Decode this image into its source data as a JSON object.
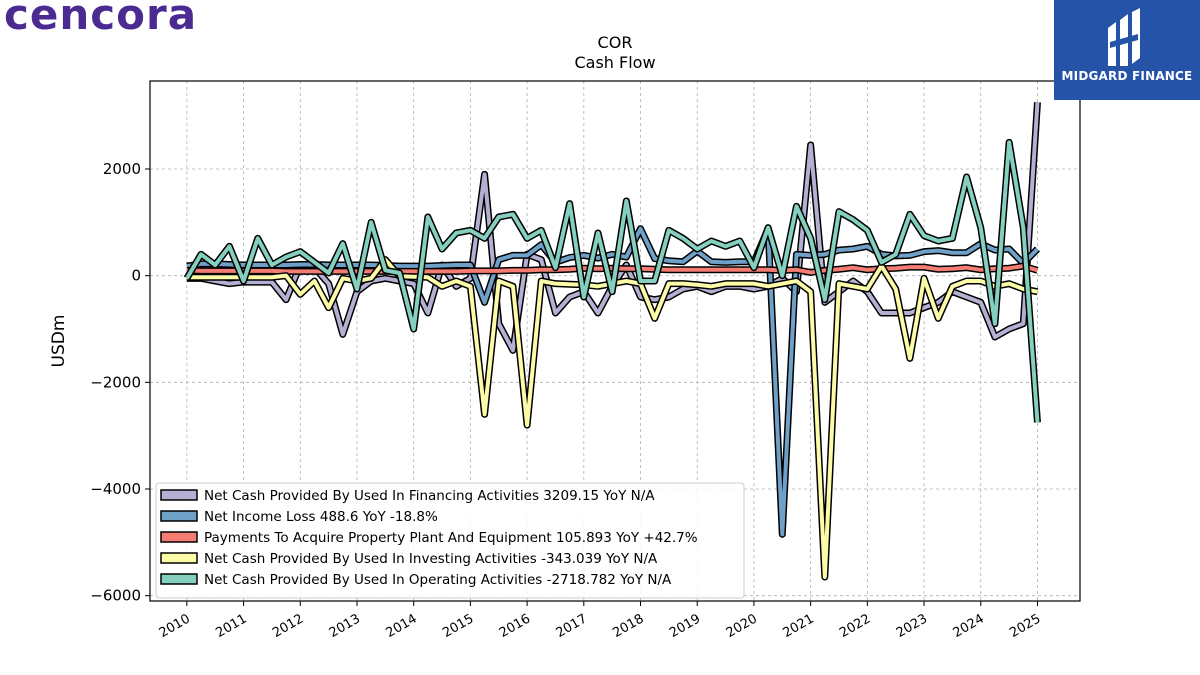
{
  "brand": {
    "company_logo": "cencora",
    "badge_text": "MIDGARD FINANCE",
    "badge_color": "#2553a8",
    "logo_color": "#4b2a91"
  },
  "chart_data": {
    "type": "line",
    "title": "COR",
    "subtitle": "Cash Flow",
    "xlabel": "",
    "ylabel": "USDm",
    "xlim": [
      2009.35,
      2025.75
    ],
    "ylim": [
      -6100,
      3650
    ],
    "yticks": [
      2000,
      0,
      -2000,
      -4000,
      -6000
    ],
    "ytick_labels": [
      "2000",
      "0",
      "−2000",
      "−4000",
      "−6000"
    ],
    "xticks": [
      "2010",
      "2011",
      "2012",
      "2013",
      "2014",
      "2015",
      "2016",
      "2017",
      "2018",
      "2019",
      "2020",
      "2021",
      "2022",
      "2023",
      "2024",
      "2025"
    ],
    "grid": true,
    "legend_position": "bottom-left",
    "series": [
      {
        "name": "Net Cash Provided By Used In Financing Activities  3209.15 YoY N/A",
        "color": "#b3b0d3",
        "values": [
          -50,
          -50,
          -100,
          -150,
          -120,
          -120,
          -120,
          -450,
          200,
          150,
          -150,
          -1100,
          -300,
          -100,
          -50,
          -100,
          -150,
          -700,
          200,
          -200,
          -50,
          1900,
          -900,
          -1400,
          400,
          300,
          -700,
          -400,
          -300,
          -700,
          -200,
          200,
          -400,
          -450,
          -400,
          -250,
          -200,
          -300,
          -200,
          -200,
          -250,
          -200,
          -50,
          -300,
          2450,
          -500,
          -300,
          -100,
          -300,
          -700,
          -700,
          -700,
          -600,
          -500,
          -300,
          -400,
          -500,
          -1150,
          -1000,
          -900,
          3250
        ]
      },
      {
        "name": "Net Income Loss  488.6 YoY -18.8%",
        "color": "#6fa0c8",
        "values": [
          180,
          220,
          220,
          210,
          200,
          200,
          200,
          200,
          210,
          210,
          200,
          200,
          200,
          200,
          190,
          180,
          180,
          180,
          190,
          200,
          200,
          -500,
          300,
          380,
          380,
          580,
          250,
          340,
          380,
          330,
          400,
          350,
          880,
          320,
          280,
          260,
          460,
          260,
          250,
          260,
          260,
          880,
          -4850,
          400,
          380,
          400,
          480,
          500,
          550,
          400,
          370,
          380,
          450,
          470,
          430,
          430,
          600,
          480,
          500,
          230,
          500
        ]
      },
      {
        "name": "Payments To Acquire Property Plant And Equipment  105.893 YoY +42.7%",
        "color": "#f47c72",
        "values": [
          100,
          90,
          90,
          90,
          90,
          90,
          90,
          80,
          80,
          80,
          80,
          80,
          80,
          80,
          80,
          80,
          80,
          80,
          80,
          80,
          90,
          90,
          90,
          100,
          100,
          110,
          110,
          120,
          140,
          130,
          140,
          130,
          130,
          120,
          110,
          110,
          110,
          110,
          110,
          110,
          110,
          110,
          100,
          110,
          60,
          100,
          120,
          150,
          110,
          130,
          140,
          160,
          160,
          120,
          130,
          150,
          110,
          130,
          140,
          180,
          100
        ]
      },
      {
        "name": "Net Cash Provided By Used In Investing Activities  -343.039 YoY N/A",
        "color": "#fcfba8",
        "values": [
          -30,
          -30,
          -30,
          -30,
          -30,
          -30,
          -30,
          0,
          -350,
          -100,
          -600,
          -50,
          -100,
          -50,
          300,
          -10,
          -20,
          -30,
          -200,
          -100,
          -200,
          -2600,
          -100,
          -200,
          -2800,
          -100,
          -150,
          -160,
          -170,
          -200,
          -150,
          -100,
          -150,
          -800,
          -150,
          -150,
          -170,
          -200,
          -150,
          -150,
          -150,
          -200,
          -150,
          -100,
          -300,
          -5650,
          -150,
          -200,
          -250,
          180,
          -250,
          -1550,
          -50,
          -800,
          -200,
          -100,
          -100,
          -200,
          -150,
          -250,
          -300
        ]
      },
      {
        "name": "Net Cash Provided By Used In Operating Activities  -2718.782 YoY N/A",
        "color": "#84cfbe",
        "values": [
          -50,
          400,
          200,
          550,
          -100,
          700,
          200,
          350,
          450,
          250,
          50,
          600,
          -250,
          1000,
          100,
          50,
          -1000,
          1100,
          500,
          800,
          850,
          700,
          1100,
          1150,
          700,
          850,
          150,
          1350,
          -400,
          800,
          -300,
          1400,
          -100,
          -100,
          850,
          700,
          500,
          650,
          550,
          650,
          150,
          900,
          0,
          1300,
          700,
          -450,
          1200,
          1050,
          850,
          250,
          400,
          1150,
          750,
          650,
          700,
          1850,
          900,
          -900,
          2500,
          900,
          -2750
        ]
      }
    ]
  }
}
